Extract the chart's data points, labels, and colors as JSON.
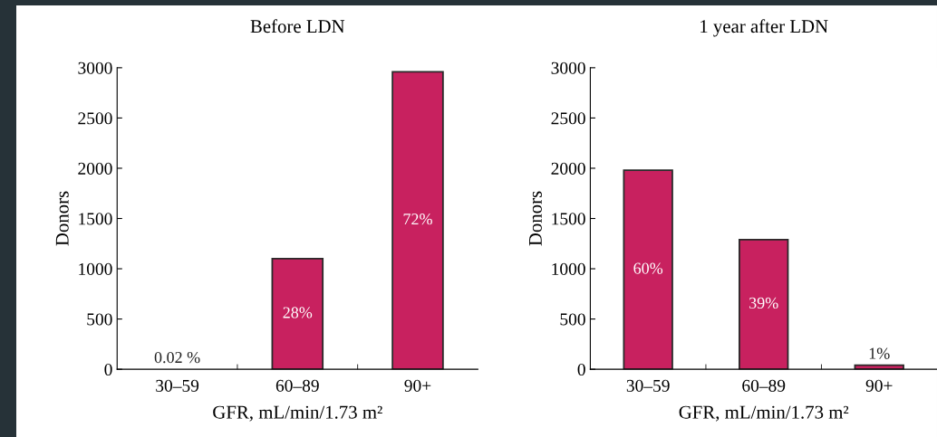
{
  "chart_data": [
    {
      "type": "bar",
      "title": "Before LDN",
      "xlabel": "GFR, mL/min/1.73 m²",
      "ylabel": "Donors",
      "categories": [
        "30–59",
        "60–89",
        "90+"
      ],
      "values": [
        0,
        1100,
        2960
      ],
      "color": "#c8215f",
      "ylim": [
        0,
        3000
      ],
      "yticks": [
        0,
        500,
        1000,
        1500,
        2000,
        2500,
        3000
      ],
      "grid": false,
      "legend": false,
      "annotations": [
        "0.02 %",
        "28%",
        "72%"
      ]
    },
    {
      "type": "bar",
      "title": "1 year after LDN",
      "xlabel": "GFR, mL/min/1.73 m²",
      "ylabel": "Donors",
      "categories": [
        "30–59",
        "60–89",
        "90+"
      ],
      "values": [
        1980,
        1290,
        40
      ],
      "color": "#c8215f",
      "ylim": [
        0,
        3000
      ],
      "yticks": [
        0,
        500,
        1000,
        1500,
        2000,
        2500,
        3000
      ],
      "grid": false,
      "legend": false,
      "annotations": [
        "60%",
        "39%",
        "1%"
      ]
    }
  ]
}
